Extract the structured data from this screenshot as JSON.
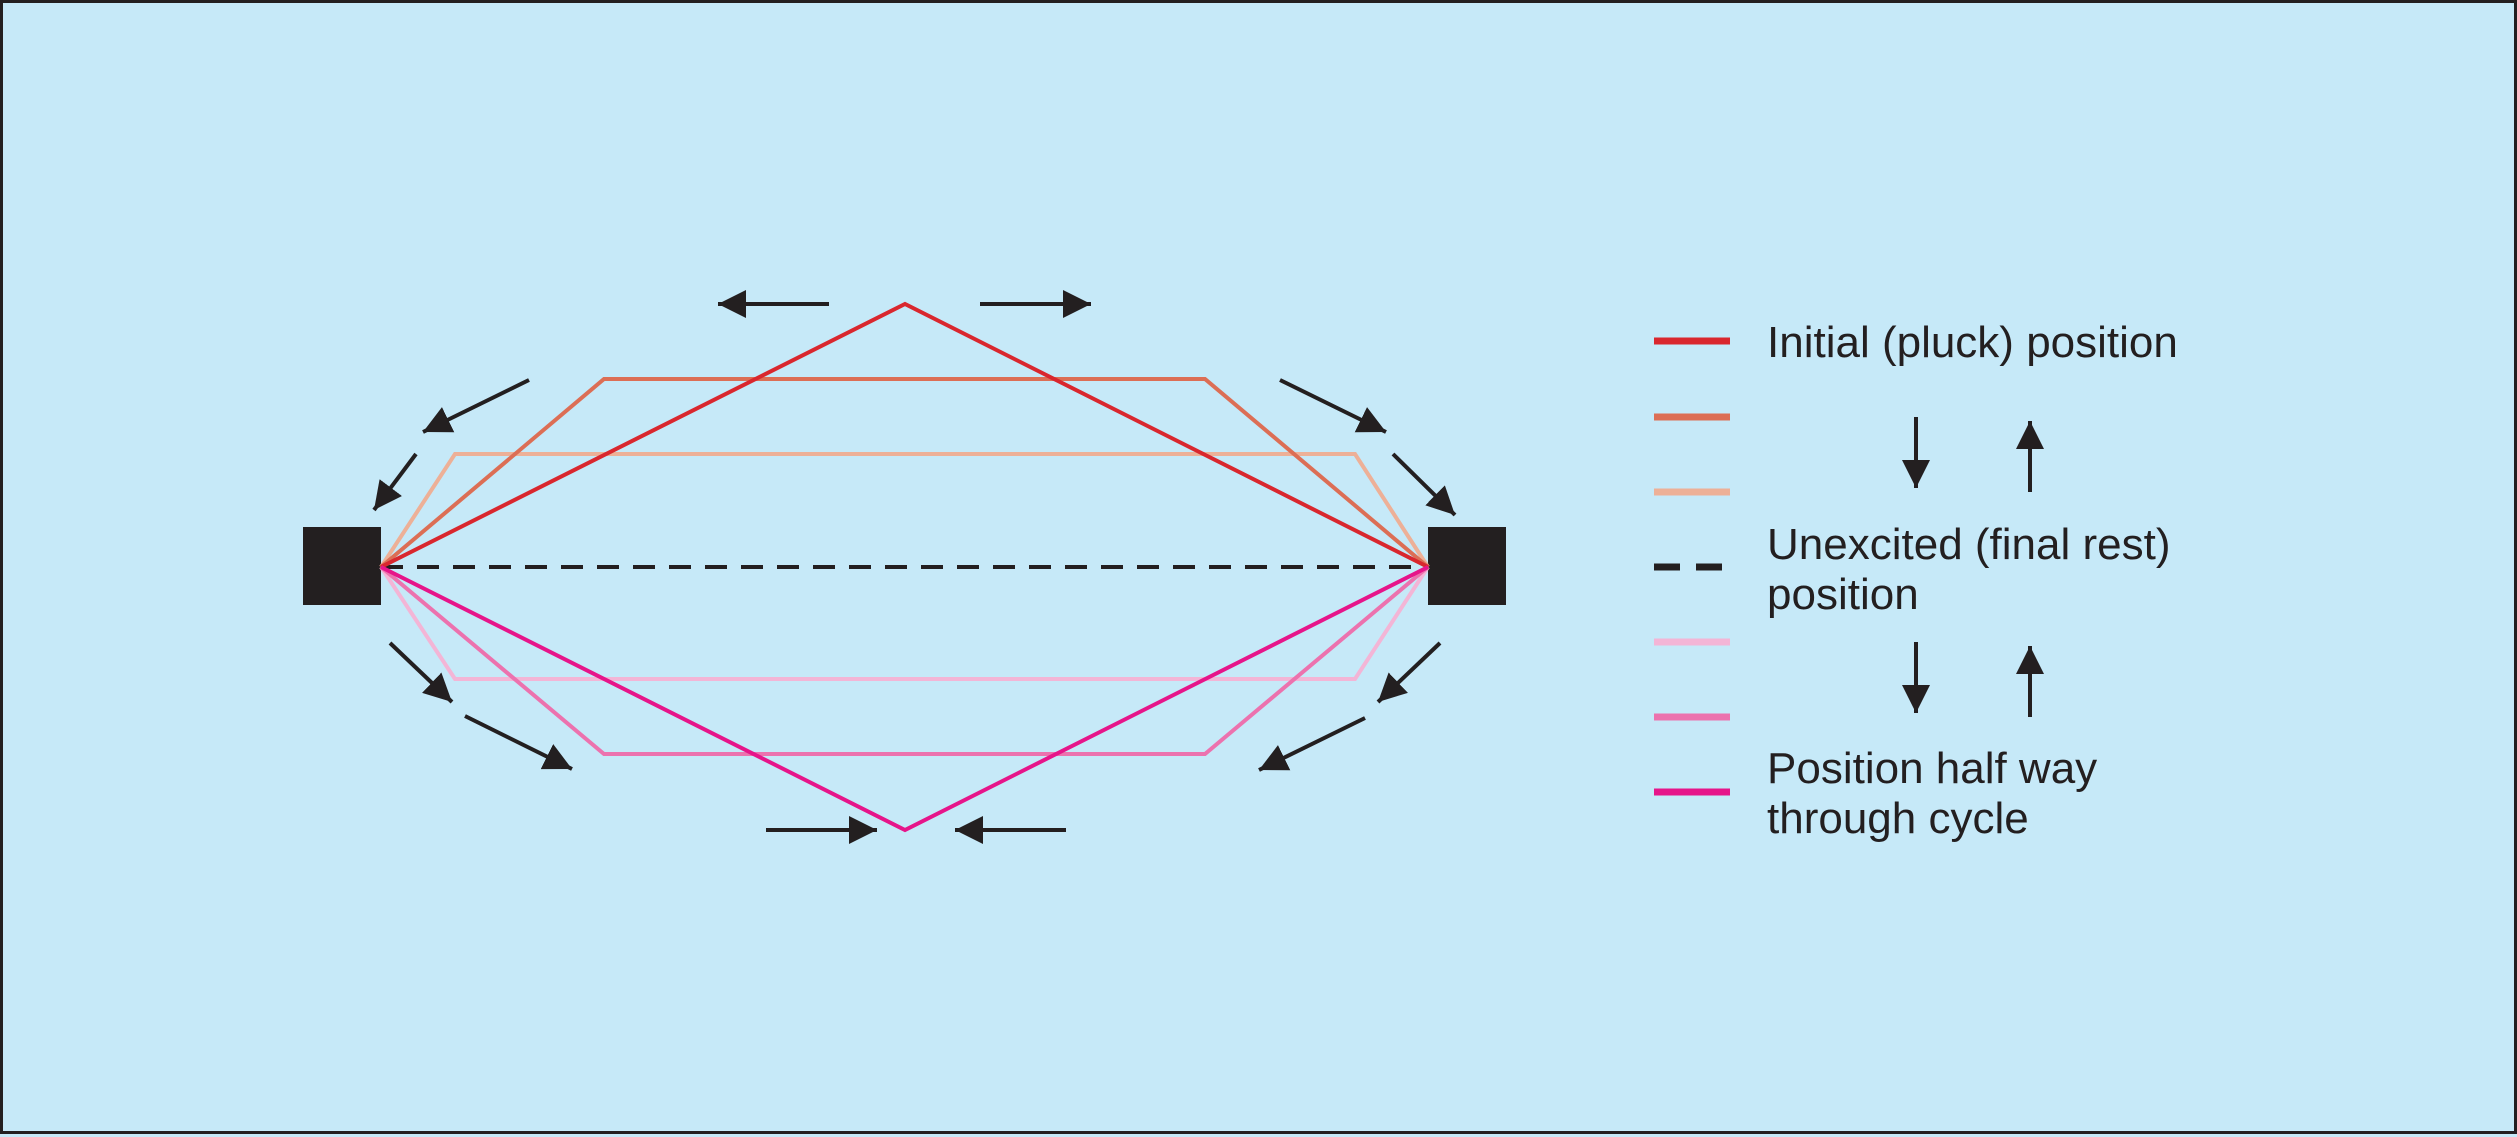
{
  "colors": {
    "background": "#c6e9f8",
    "ink": "#231f20",
    "initial_red": "#d9272e",
    "orange": "#dc6e55",
    "peach": "#edb097",
    "light_pink": "#f3b5d6",
    "mid_pink": "#ec72ae",
    "magenta": "#e6158a"
  },
  "legend": {
    "initial_label": "Initial (pluck) position",
    "rest_label_line1": "Unexcited (final rest)",
    "rest_label_line2": "position",
    "half_label_line1": "Position half way",
    "half_label_line2": "through cycle"
  }
}
